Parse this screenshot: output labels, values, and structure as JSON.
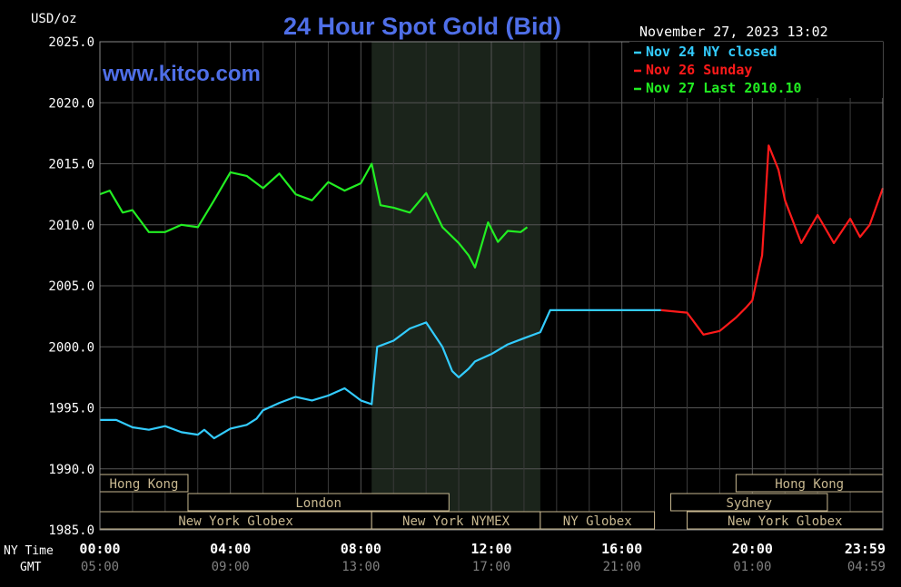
{
  "chart_data": {
    "type": "line",
    "title": "24 Hour Spot Gold (Bid)",
    "watermark": "www.kitco.com",
    "unit_label": "USD/oz",
    "timestamp": "November 27, 2023 13:02",
    "ylim": [
      1985,
      2025
    ],
    "y_ticks": [
      {
        "value": 2025,
        "label": "2025.0"
      },
      {
        "value": 2020,
        "label": "2020.0"
      },
      {
        "value": 2015,
        "label": "2015.0"
      },
      {
        "value": 2010,
        "label": "2010.0"
      },
      {
        "value": 2005,
        "label": "2005.0"
      },
      {
        "value": 2000,
        "label": "2000.0"
      },
      {
        "value": 1995,
        "label": "1995.0"
      },
      {
        "value": 1990,
        "label": "1990.0"
      },
      {
        "value": 1985,
        "label": "1985.0"
      }
    ],
    "x_axis": {
      "range_hours": [
        0,
        24
      ],
      "ny_label": "NY Time",
      "gmt_label": "GMT",
      "ticks": [
        {
          "hour": 0,
          "ny": "00:00",
          "gmt": "05:00"
        },
        {
          "hour": 4,
          "ny": "04:00",
          "gmt": "09:00"
        },
        {
          "hour": 8,
          "ny": "08:00",
          "gmt": "13:00"
        },
        {
          "hour": 12,
          "ny": "12:00",
          "gmt": "17:00"
        },
        {
          "hour": 16,
          "ny": "16:00",
          "gmt": "21:00"
        },
        {
          "hour": 20,
          "ny": "20:00",
          "gmt": "01:00"
        },
        {
          "hour": 23.983,
          "ny": "23:59",
          "gmt": "04:59"
        }
      ]
    },
    "shaded_session": {
      "start_hour": 8.33,
      "end_hour": 13.5
    },
    "legend": {
      "position": "top-right",
      "entries": [
        {
          "label": "Nov 24 NY closed",
          "color": "#33ccff"
        },
        {
          "label": "Nov 26 Sunday",
          "color": "#ff1a1a"
        },
        {
          "label": "Nov 27 Last 2010.10",
          "color": "#22ee22"
        }
      ]
    },
    "series": [
      {
        "name": "Nov 24 NY closed",
        "color": "#33ccff",
        "x": [
          0,
          0.5,
          1,
          1.5,
          2,
          2.5,
          3,
          3.2,
          3.5,
          4,
          4.5,
          4.8,
          5,
          5.5,
          6,
          6.5,
          7,
          7.5,
          7.8,
          8,
          8.33,
          8.5,
          9,
          9.5,
          10,
          10.5,
          10.8,
          11,
          11.3,
          11.5,
          12,
          12.5,
          13,
          13.5,
          13.8,
          17.2
        ],
        "values": [
          1994.0,
          1994.0,
          1993.4,
          1993.2,
          1993.5,
          1993.0,
          1992.8,
          1993.2,
          1992.5,
          1993.3,
          1993.6,
          1994.1,
          1994.8,
          1995.4,
          1995.9,
          1995.6,
          1996.0,
          1996.6,
          1996.0,
          1995.6,
          1995.3,
          2000.0,
          2000.5,
          2001.5,
          2002.0,
          2000.0,
          1998.0,
          1997.5,
          1998.2,
          1998.8,
          1999.4,
          2000.2,
          2000.7,
          2001.2,
          2003.0,
          2003.0
        ]
      },
      {
        "name": "Nov 26 Sunday",
        "color": "#ff1a1a",
        "x": [
          17.2,
          18,
          18.5,
          19,
          19.5,
          19.8,
          20,
          20.3,
          20.5,
          20.8,
          21,
          21.5,
          22,
          22.5,
          23,
          23.3,
          23.6,
          24
        ],
        "values": [
          2003.0,
          2002.8,
          2001.0,
          2001.3,
          2002.4,
          2003.2,
          2003.8,
          2007.5,
          2016.5,
          2014.5,
          2012.0,
          2008.5,
          2010.8,
          2008.5,
          2010.5,
          2009.0,
          2010.0,
          2013.0
        ]
      },
      {
        "name": "Nov 27 Last 2010.10",
        "color": "#22ee22",
        "x": [
          0,
          0.3,
          0.7,
          1,
          1.5,
          2,
          2.5,
          3,
          3.5,
          4,
          4.5,
          5,
          5.5,
          6,
          6.5,
          7,
          7.5,
          8,
          8.33,
          8.6,
          9,
          9.5,
          10,
          10.5,
          11,
          11.3,
          11.5,
          11.9,
          12.2,
          12.5,
          12.9,
          13.1
        ],
        "values": [
          2012.5,
          2012.8,
          2011.0,
          2011.2,
          2009.4,
          2009.4,
          2010.0,
          2009.8,
          2012.0,
          2014.3,
          2014.0,
          2013.0,
          2014.2,
          2012.5,
          2012.0,
          2013.5,
          2012.8,
          2013.4,
          2015.0,
          2011.6,
          2011.4,
          2011.0,
          2012.6,
          2009.8,
          2008.5,
          2007.5,
          2006.5,
          2010.2,
          2008.6,
          2009.5,
          2009.4,
          2009.8
        ]
      }
    ],
    "session_bars": [
      {
        "label": "Hong Kong",
        "row": 0,
        "start_hour": 0,
        "end_hour": 2.7
      },
      {
        "label": "Hong Kong",
        "row": 0,
        "start_hour": 19.5,
        "end_hour": 24
      },
      {
        "label": "London",
        "row": 1,
        "start_hour": 2.7,
        "end_hour": 10.7
      },
      {
        "label": "Sydney",
        "row": 1,
        "start_hour": 17.5,
        "end_hour": 22.3
      },
      {
        "label": "New York Globex",
        "row": 2,
        "start_hour": 0,
        "end_hour": 8.33
      },
      {
        "label": "New York NYMEX",
        "row": 2,
        "start_hour": 8.33,
        "end_hour": 13.5
      },
      {
        "label": "NY Globex",
        "row": 2,
        "start_hour": 13.5,
        "end_hour": 17.0
      },
      {
        "label": "New York Globex",
        "row": 2,
        "start_hour": 18.0,
        "end_hour": 24
      }
    ],
    "grid": true
  }
}
